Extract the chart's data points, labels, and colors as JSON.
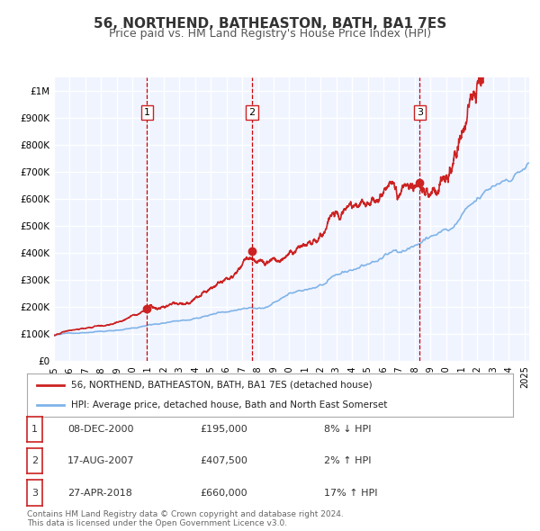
{
  "title": "56, NORTHEND, BATHEASTON, BATH, BA1 7ES",
  "subtitle": "Price paid vs. HM Land Registry's House Price Index (HPI)",
  "background_color": "#ffffff",
  "plot_bg_color": "#f0f4ff",
  "grid_color": "#ffffff",
  "title_fontsize": 11,
  "subtitle_fontsize": 9,
  "ylabel_ticks": [
    "£0",
    "£100K",
    "£200K",
    "£300K",
    "£400K",
    "£500K",
    "£600K",
    "£700K",
    "£800K",
    "£900K",
    "£1M"
  ],
  "ytick_values": [
    0,
    100000,
    200000,
    300000,
    400000,
    500000,
    600000,
    700000,
    800000,
    900000,
    1000000
  ],
  "ylim": [
    0,
    1050000
  ],
  "xlim_start": 1995.0,
  "xlim_end": 2025.3,
  "sale_dates": [
    2000.93,
    2007.62,
    2018.32
  ],
  "sale_prices": [
    195000,
    407500,
    660000
  ],
  "sale_labels": [
    "1",
    "2",
    "3"
  ],
  "vline_color": "#cc0000",
  "sale_dot_color": "#cc2222",
  "hpi_line_color": "#7fb3e8",
  "price_line_color": "#cc2222",
  "legend_label_price": "56, NORTHEND, BATHEASTON, BATH, BA1 7ES (detached house)",
  "legend_label_hpi": "HPI: Average price, detached house, Bath and North East Somerset",
  "table_rows": [
    {
      "num": "1",
      "date": "08-DEC-2000",
      "price": "£195,000",
      "pct": "8% ↓ HPI"
    },
    {
      "num": "2",
      "date": "17-AUG-2007",
      "price": "£407,500",
      "pct": "2% ↑ HPI"
    },
    {
      "num": "3",
      "date": "27-APR-2018",
      "price": "£660,000",
      "pct": "17% ↑ HPI"
    }
  ],
  "footer_text": "Contains HM Land Registry data © Crown copyright and database right 2024.\nThis data is licensed under the Open Government Licence v3.0.",
  "xtick_years": [
    1995,
    1996,
    1997,
    1998,
    1999,
    2000,
    2001,
    2002,
    2003,
    2004,
    2005,
    2006,
    2007,
    2008,
    2009,
    2010,
    2011,
    2012,
    2013,
    2014,
    2015,
    2016,
    2017,
    2018,
    2019,
    2020,
    2021,
    2022,
    2023,
    2024,
    2025
  ]
}
